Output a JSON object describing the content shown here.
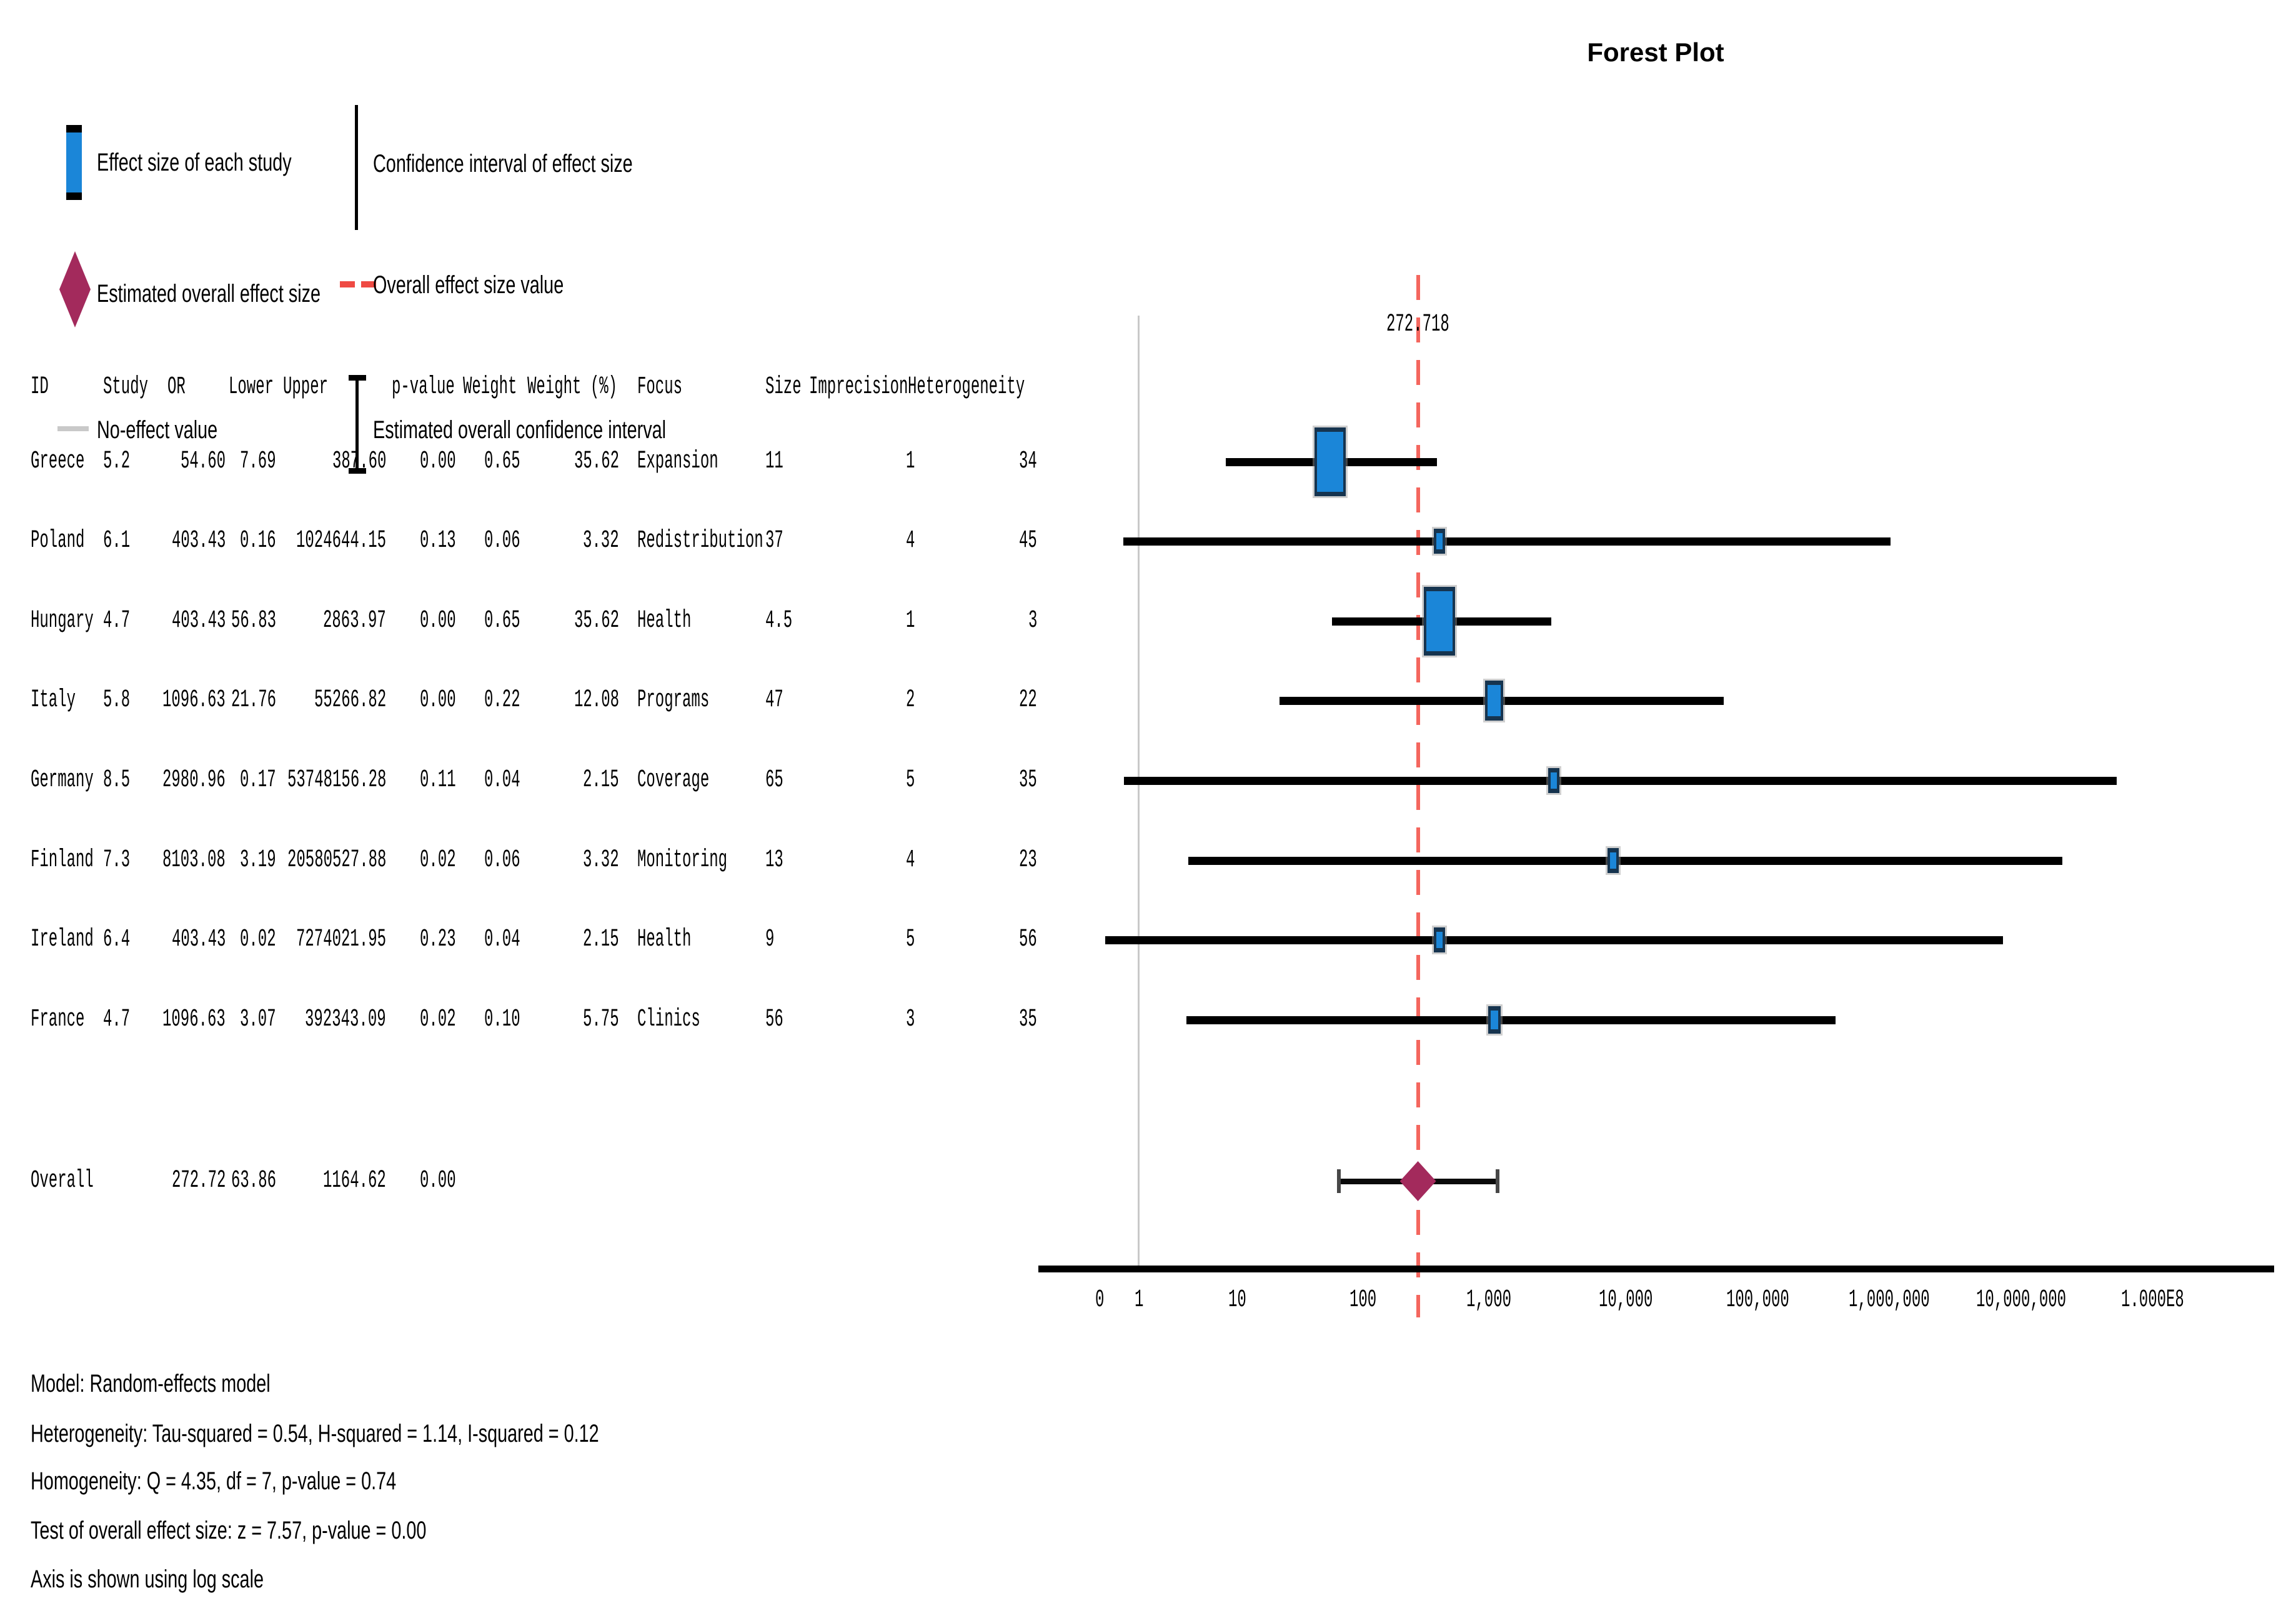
{
  "title": "Forest Plot",
  "legend": {
    "items": [
      {
        "icon": "study-effect-marker-icon",
        "label": "Effect size of each study"
      },
      {
        "icon": "confidence-interval-icon",
        "label": "Confidence interval of effect size"
      },
      {
        "icon": "overall-diamond-icon",
        "label": "Estimated overall effect size"
      },
      {
        "icon": "overall-dashed-line-icon",
        "label": "Overall effect size value"
      },
      {
        "icon": "no-effect-line-icon",
        "label": "No-effect value"
      },
      {
        "icon": "overall-ci-ibeam-icon",
        "label": "Estimated overall confidence interval"
      }
    ]
  },
  "table": {
    "columns": [
      "ID",
      "Study",
      "OR",
      "Lower",
      "Upper",
      "p-value",
      "Weight",
      "Weight (%)",
      "Focus",
      "Size",
      "Imprecision",
      "Heterogeneity"
    ]
  },
  "chart_data": {
    "type": "forest",
    "title": "Forest Plot",
    "x_axis": {
      "scale": "log",
      "note": "Axis is shown using log scale",
      "tick_labels": [
        "0",
        "1",
        "10",
        "100",
        "1,000",
        "10,000",
        "100,000",
        "1,000,000",
        "10,000,000",
        "1.000E8"
      ],
      "tick_values": [
        0,
        1,
        10,
        100,
        1000,
        10000,
        100000,
        1000000,
        10000000,
        100000000
      ]
    },
    "no_effect_value": 1,
    "overall_effect": {
      "label": "272.718",
      "value": 272.718
    },
    "studies": [
      {
        "id": "Greece",
        "study": "5.2",
        "or": 54.6,
        "lower": 7.69,
        "upper": 387.6,
        "p_value": "0.00",
        "weight": "0.65",
        "weight_pct": 35.62,
        "focus": "Expansion",
        "size": "11",
        "imprecision": "1",
        "heterogeneity": "34"
      },
      {
        "id": "Poland",
        "study": "6.1",
        "or": 403.43,
        "lower": 0.16,
        "upper": 1024644.15,
        "p_value": "0.13",
        "weight": "0.06",
        "weight_pct": 3.32,
        "focus": "Redistribution",
        "size": "37",
        "imprecision": "4",
        "heterogeneity": "45"
      },
      {
        "id": "Hungary",
        "study": "4.7",
        "or": 403.43,
        "lower": 56.83,
        "upper": 2863.97,
        "p_value": "0.00",
        "weight": "0.65",
        "weight_pct": 35.62,
        "focus": "Health",
        "size": "4.5",
        "imprecision": "1",
        "heterogeneity": "3"
      },
      {
        "id": "Italy",
        "study": "5.8",
        "or": 1096.63,
        "lower": 21.76,
        "upper": 55266.82,
        "p_value": "0.00",
        "weight": "0.22",
        "weight_pct": 12.08,
        "focus": "Programs",
        "size": "47",
        "imprecision": "2",
        "heterogeneity": "22"
      },
      {
        "id": "Germany",
        "study": "8.5",
        "or": 2980.96,
        "lower": 0.17,
        "upper": 53748156.28,
        "p_value": "0.11",
        "weight": "0.04",
        "weight_pct": 2.15,
        "focus": "Coverage",
        "size": "65",
        "imprecision": "5",
        "heterogeneity": "35"
      },
      {
        "id": "Finland",
        "study": "7.3",
        "or": 8103.08,
        "lower": 3.19,
        "upper": 20580527.88,
        "p_value": "0.02",
        "weight": "0.06",
        "weight_pct": 3.32,
        "focus": "Monitoring",
        "size": "13",
        "imprecision": "4",
        "heterogeneity": "23"
      },
      {
        "id": "Ireland",
        "study": "6.4",
        "or": 403.43,
        "lower": 0.02,
        "upper": 7274021.95,
        "p_value": "0.23",
        "weight": "0.04",
        "weight_pct": 2.15,
        "focus": "Health",
        "size": "9",
        "imprecision": "5",
        "heterogeneity": "56"
      },
      {
        "id": "France",
        "study": "4.7",
        "or": 1096.63,
        "lower": 3.07,
        "upper": 392343.09,
        "p_value": "0.02",
        "weight": "0.10",
        "weight_pct": 5.75,
        "focus": "Clinics",
        "size": "56",
        "imprecision": "3",
        "heterogeneity": "35"
      }
    ],
    "overall": {
      "id": "Overall",
      "or": 272.72,
      "lower": 63.86,
      "upper": 1164.62,
      "p_value": "0.00"
    }
  },
  "footer": {
    "lines": [
      "Model: Random-effects model",
      "Heterogeneity: Tau-squared = 0.54, H-squared = 1.14, I-squared = 0.12",
      "Homogeneity: Q = 4.35, df = 7, p-value = 0.74",
      "Test of overall effect size: z = 7.57, p-value = 0.00",
      "Axis is shown using log scale"
    ]
  },
  "colors": {
    "study_marker": "#1b86d8",
    "study_marker_border": "#16344f",
    "overall_marker": "#a32a5c",
    "overall_effect_line": "#f4665e",
    "no_effect_line": "#c9c9c9",
    "ci_line": "#000000",
    "axis_line": "#000000"
  }
}
